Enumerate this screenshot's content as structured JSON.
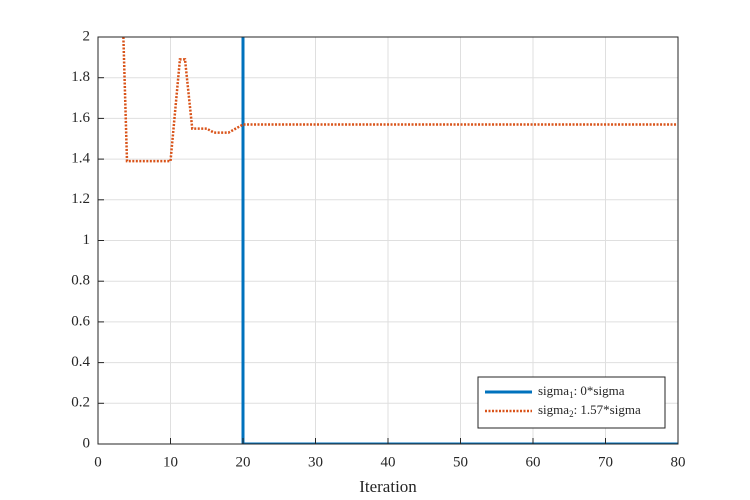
{
  "chart_data": {
    "type": "line",
    "xlabel": "Iteration",
    "xlim": [
      0,
      80
    ],
    "xticks": [
      0,
      10,
      20,
      30,
      40,
      50,
      60,
      70,
      80
    ],
    "ylim": [
      0,
      2
    ],
    "yticks": [
      0,
      0.2,
      0.4,
      0.6,
      0.8,
      1,
      1.2,
      1.4,
      1.6,
      1.8,
      2
    ],
    "grid": true,
    "legend": "southeast",
    "series": [
      {
        "name": {
          "base": "sigma",
          "sub": "1",
          "rest": ": 0*sigma"
        },
        "color": "#0072bd",
        "style": "solid",
        "x": [
          20,
          20,
          80
        ],
        "values": [
          2,
          0,
          0
        ]
      },
      {
        "name": {
          "base": "sigma",
          "sub": "2",
          "rest": ": 1.57*sigma"
        },
        "color": "#d95319",
        "style": "dotted",
        "x": [
          3.5,
          4,
          10,
          11.3,
          12,
          13,
          15,
          16,
          18,
          20,
          80
        ],
        "values": [
          2,
          1.39,
          1.39,
          1.89,
          1.89,
          1.55,
          1.55,
          1.53,
          1.53,
          1.57,
          1.57
        ]
      }
    ]
  }
}
